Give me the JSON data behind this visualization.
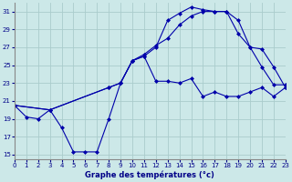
{
  "title": "Graphe des températures (°c)",
  "bg_color": "#cce8e8",
  "grid_color": "#aacccc",
  "line_color": "#0000aa",
  "x_ticks": [
    0,
    1,
    2,
    3,
    4,
    5,
    6,
    7,
    8,
    9,
    10,
    11,
    12,
    13,
    14,
    15,
    16,
    17,
    18,
    19,
    20,
    21,
    22,
    23
  ],
  "xlim": [
    0,
    23
  ],
  "ylim": [
    14.5,
    32
  ],
  "y_ticks": [
    15,
    17,
    19,
    21,
    23,
    25,
    27,
    29,
    31
  ],
  "series1_x": [
    0,
    1,
    2,
    3,
    4,
    5,
    6,
    7,
    8,
    9,
    10,
    11,
    12,
    13,
    14,
    15,
    16,
    17,
    18,
    19,
    20,
    21,
    22,
    23
  ],
  "series1_y": [
    20.5,
    19.2,
    19.0,
    20.0,
    18.0,
    15.3,
    15.3,
    15.3,
    19.0,
    23.0,
    25.5,
    26.0,
    23.2,
    23.2,
    23.0,
    23.5,
    21.5,
    22.0,
    21.5,
    21.5,
    22.0,
    22.5,
    21.5,
    22.5
  ],
  "series2_x": [
    0,
    3,
    8,
    9,
    10,
    11,
    12,
    13,
    14,
    15,
    16,
    17,
    18,
    19,
    20,
    21,
    22,
    23
  ],
  "series2_y": [
    20.5,
    20.0,
    22.5,
    23.0,
    25.5,
    26.2,
    27.2,
    28.0,
    29.5,
    30.5,
    31.0,
    31.0,
    31.0,
    28.5,
    27.0,
    24.8,
    22.8,
    22.8
  ],
  "series3_x": [
    0,
    3,
    8,
    9,
    10,
    11,
    12,
    13,
    14,
    15,
    16,
    17,
    18,
    19,
    20,
    21,
    22,
    23
  ],
  "series3_y": [
    20.5,
    20.0,
    22.5,
    23.0,
    25.5,
    26.0,
    27.0,
    30.0,
    30.8,
    31.5,
    31.2,
    31.0,
    31.0,
    30.0,
    27.0,
    26.8,
    24.8,
    22.5
  ]
}
